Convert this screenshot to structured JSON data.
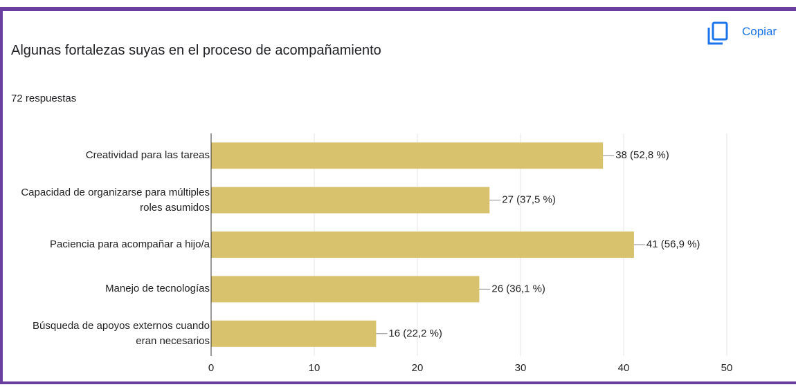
{
  "chart_data": {
    "type": "bar",
    "orientation": "horizontal",
    "title": "Algunas fortalezas suyas en el proceso de acompañamiento",
    "subtitle": "72 respuestas",
    "action": "Copiar",
    "categories": [
      "Creatividad para las tareas",
      "Capacidad de organizarse para múltiples roles asumidos",
      "Paciencia para acompañar a hijo/a",
      "Manejo de tecnologías",
      "Búsqueda de apoyos externos cuando eran necesarios"
    ],
    "values": [
      38,
      27,
      41,
      26,
      16
    ],
    "value_labels": [
      "38 (52,8 %)",
      "27 (37,5 %)",
      "41 (56,9 %)",
      "26 (36,1 %)",
      "16 (22,2 %)"
    ],
    "color": "#d9c26e",
    "xlim": [
      0,
      50
    ],
    "xticks": [
      0,
      10,
      20,
      30,
      40,
      50
    ],
    "grid": true
  }
}
